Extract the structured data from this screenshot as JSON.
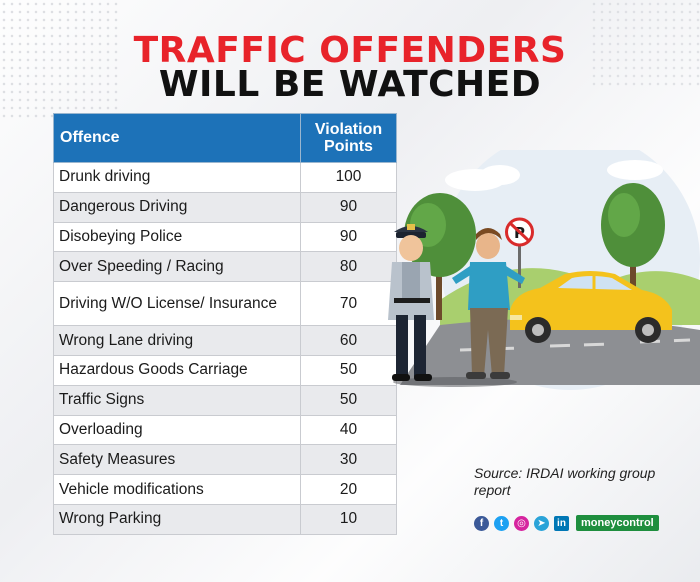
{
  "title": {
    "line1": "TRAFFIC OFFENDERS",
    "line2": "WILL BE WATCHED"
  },
  "table": {
    "headers": {
      "offence": "Offence",
      "points_line1": "Violation",
      "points_line2": "Points"
    },
    "rows": [
      {
        "offence": "Drunk driving",
        "points": "100"
      },
      {
        "offence": "Dangerous Driving",
        "points": "90"
      },
      {
        "offence": "Disobeying Police",
        "points": "90"
      },
      {
        "offence": "Over Speeding / Racing",
        "points": "80"
      },
      {
        "offence": "Driving W/O License/ Insurance",
        "points": "70"
      },
      {
        "offence": "Wrong Lane driving",
        "points": "60"
      },
      {
        "offence": "Hazardous Goods Carriage",
        "points": "50"
      },
      {
        "offence": "Traffic Signs",
        "points": "50"
      },
      {
        "offence": "Overloading",
        "points": "40"
      },
      {
        "offence": "Safety Measures",
        "points": "30"
      },
      {
        "offence": "Vehicle modifications",
        "points": "20"
      },
      {
        "offence": "Wrong Parking",
        "points": "10"
      }
    ]
  },
  "source": {
    "text": "Source: IRDAI working group report"
  },
  "footer": {
    "brand": "moneycontrol",
    "social_icons": [
      "facebook-icon",
      "twitter-icon",
      "instagram-icon",
      "telegram-icon",
      "linkedin-icon"
    ]
  },
  "colors": {
    "title_red": "#e8232a",
    "header_blue": "#1d72b8",
    "car_yellow": "#f4c21c",
    "brand_green": "#1e8e3e"
  }
}
